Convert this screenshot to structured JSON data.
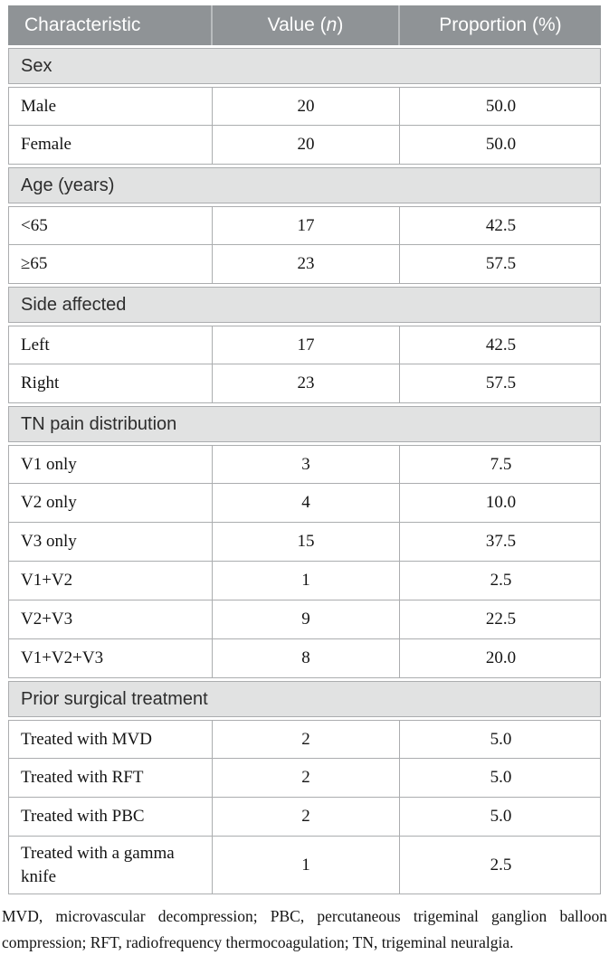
{
  "colors": {
    "header_bg": "#8f9396",
    "header_text": "#ffffff",
    "section_bg": "#e1e2e2",
    "grid_border": "#abadaf",
    "section_text": "#2d2d2d",
    "body_text": "#141414"
  },
  "table": {
    "header": {
      "characteristic": "Characteristic",
      "value_pre": "Value (",
      "value_italic": "n",
      "value_post": ")",
      "proportion": "Proportion (%)"
    },
    "sections": [
      {
        "title": "Sex",
        "rows": [
          {
            "characteristic": "Male",
            "value": "20",
            "proportion": "50.0"
          },
          {
            "characteristic": "Female",
            "value": "20",
            "proportion": "50.0"
          }
        ]
      },
      {
        "title": "Age (years)",
        "rows": [
          {
            "characteristic": "<65",
            "value": "17",
            "proportion": "42.5"
          },
          {
            "characteristic": "≥65",
            "value": "23",
            "proportion": "57.5"
          }
        ]
      },
      {
        "title": "Side affected",
        "rows": [
          {
            "characteristic": "Left",
            "value": "17",
            "proportion": "42.5"
          },
          {
            "characteristic": "Right",
            "value": "23",
            "proportion": "57.5"
          }
        ]
      },
      {
        "title": "TN pain distribution",
        "rows": [
          {
            "characteristic": "V1 only",
            "value": "3",
            "proportion": "7.5"
          },
          {
            "characteristic": "V2 only",
            "value": "4",
            "proportion": "10.0"
          },
          {
            "characteristic": "V3 only",
            "value": "15",
            "proportion": "37.5"
          },
          {
            "characteristic": "V1+V2",
            "value": "1",
            "proportion": "2.5"
          },
          {
            "characteristic": "V2+V3",
            "value": "9",
            "proportion": "22.5"
          },
          {
            "characteristic": "V1+V2+V3",
            "value": "8",
            "proportion": "20.0"
          }
        ]
      },
      {
        "title": "Prior surgical treatment",
        "rows": [
          {
            "characteristic": "Treated with MVD",
            "value": "2",
            "proportion": "5.0"
          },
          {
            "characteristic": "Treated with RFT",
            "value": "2",
            "proportion": "5.0"
          },
          {
            "characteristic": "Treated with PBC",
            "value": "2",
            "proportion": "5.0"
          },
          {
            "characteristic": "Treated with a gamma knife",
            "value": "1",
            "proportion": "2.5"
          }
        ]
      }
    ],
    "footnote": "MVD, microvascular decompression; PBC, percutaneous trigeminal ganglion balloon compression; RFT, radiofrequency thermocoagulation; TN, trigeminal neuralgia."
  }
}
